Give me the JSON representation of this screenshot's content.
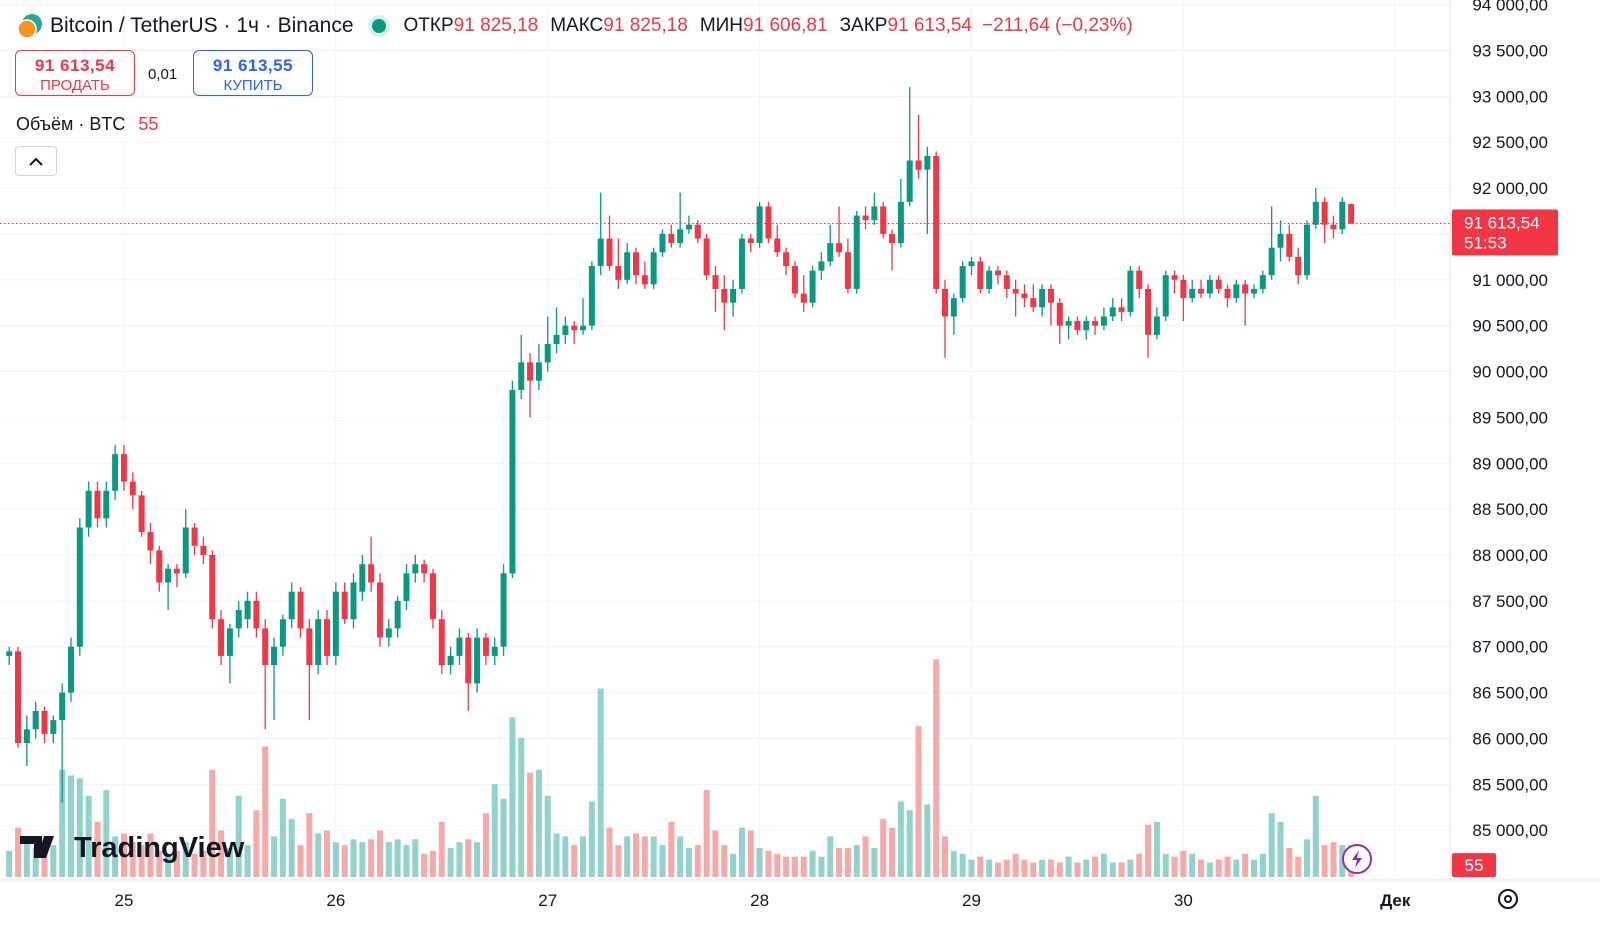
{
  "chart_data": {
    "type": "candlestick",
    "title": "Bitcoin / TetherUS · 1ч · Binance",
    "ohlc_header": [
      {
        "label": "ОТКР",
        "value": "91 825,18"
      },
      {
        "label": "МАКС",
        "value": "91 825,18"
      },
      {
        "label": "МИН",
        "value": "91 606,81"
      },
      {
        "label": "ЗАКР",
        "value": "91 613,54"
      }
    ],
    "change": "−211,64 (−0,23%)",
    "sell": {
      "price": "91 613,54",
      "label": "ПРОДАТЬ"
    },
    "spread": "0,01",
    "buy": {
      "price": "91 613,55",
      "label": "КУПИТЬ"
    },
    "volume_title": "Объём · BTC",
    "price_badge": {
      "price": "91 613,54",
      "timer": "51:53"
    },
    "watermark": "TradingView",
    "up_color": "#089981",
    "down_color": "#f23645",
    "volume_up_color": "#92d2cc",
    "volume_down_color": "#f7a9a7",
    "grid": true,
    "xlim": [
      -14.04,
      150.2
    ],
    "xticks": [
      {
        "value": 0,
        "label": "25"
      },
      {
        "value": 24,
        "label": "26"
      },
      {
        "value": 48,
        "label": "27"
      },
      {
        "value": 72,
        "label": "28"
      },
      {
        "value": 96,
        "label": "29"
      },
      {
        "value": 120,
        "label": "30"
      },
      {
        "value": 144,
        "label": "Дек"
      }
    ],
    "ylim": [
      84490,
      94050
    ],
    "yticks": [
      {
        "value": 85000,
        "label": "85 000,00"
      },
      {
        "value": 85500,
        "label": "85 500,00"
      },
      {
        "value": 86000,
        "label": "86 000,00"
      },
      {
        "value": 86500,
        "label": "86 500,00"
      },
      {
        "value": 87000,
        "label": "87 000,00"
      },
      {
        "value": 87500,
        "label": "87 500,00"
      },
      {
        "value": 88000,
        "label": "88 000,00"
      },
      {
        "value": 88500,
        "label": "88 500,00"
      },
      {
        "value": 89000,
        "label": "89 000,00"
      },
      {
        "value": 89500,
        "label": "89 500,00"
      },
      {
        "value": 90000,
        "label": "90 000,00"
      },
      {
        "value": 90500,
        "label": "90 500,00"
      },
      {
        "value": 91000,
        "label": "91 000,00"
      },
      {
        "value": 91500,
        "label": "91 500,00"
      },
      {
        "value": 92000,
        "label": "92 000,00"
      },
      {
        "value": 92500,
        "label": "92 500,00"
      },
      {
        "value": 93000,
        "label": "93 000,00"
      },
      {
        "value": 93500,
        "label": "93 500,00"
      },
      {
        "value": 94000,
        "label": "94 000,00"
      }
    ],
    "x": [
      -13,
      -12,
      -11,
      -10,
      -9,
      -8,
      -7,
      -6,
      -5,
      -4,
      -3,
      -2,
      -1,
      0,
      1,
      2,
      3,
      4,
      5,
      6,
      7,
      8,
      9,
      10,
      11,
      12,
      13,
      14,
      15,
      16,
      17,
      18,
      19,
      20,
      21,
      22,
      23,
      24,
      25,
      26,
      27,
      28,
      29,
      30,
      31,
      32,
      33,
      34,
      35,
      36,
      37,
      38,
      39,
      40,
      41,
      42,
      43,
      44,
      45,
      46,
      47,
      48,
      49,
      50,
      51,
      52,
      53,
      54,
      55,
      56,
      57,
      58,
      59,
      60,
      61,
      62,
      63,
      64,
      65,
      66,
      67,
      68,
      69,
      70,
      71,
      72,
      73,
      74,
      75,
      76,
      77,
      78,
      79,
      80,
      81,
      82,
      83,
      84,
      85,
      86,
      87,
      88,
      89,
      90,
      91,
      92,
      93,
      94,
      95,
      96,
      97,
      98,
      99,
      100,
      101,
      102,
      103,
      104,
      105,
      106,
      107,
      108,
      109,
      110,
      111,
      112,
      113,
      114,
      115,
      116,
      117,
      118,
      119,
      120,
      121,
      122,
      123,
      124,
      125,
      126,
      127,
      128,
      129,
      130,
      131,
      132,
      133,
      134,
      135,
      136,
      137,
      138,
      139
    ],
    "ohlc": [
      [
        86900,
        87000,
        86800,
        86950
      ],
      [
        86950,
        87000,
        85900,
        85950
      ],
      [
        85950,
        86250,
        85700,
        86100
      ],
      [
        86100,
        86400,
        86000,
        86300
      ],
      [
        86300,
        86350,
        85950,
        86050
      ],
      [
        86050,
        86250,
        85950,
        86200
      ],
      [
        86200,
        86600,
        85300,
        86500
      ],
      [
        86500,
        87100,
        86400,
        87000
      ],
      [
        87000,
        88400,
        86900,
        88300
      ],
      [
        88300,
        88800,
        88200,
        88700
      ],
      [
        88700,
        88800,
        88300,
        88400
      ],
      [
        88400,
        88800,
        88300,
        88700
      ],
      [
        88700,
        89200,
        88600,
        89100
      ],
      [
        89100,
        89200,
        88700,
        88800
      ],
      [
        88800,
        88900,
        88500,
        88650
      ],
      [
        88650,
        88700,
        88200,
        88250
      ],
      [
        88250,
        88350,
        87900,
        88050
      ],
      [
        88050,
        88100,
        87600,
        87700
      ],
      [
        87700,
        87900,
        87400,
        87850
      ],
      [
        87850,
        87900,
        87650,
        87800
      ],
      [
        87800,
        88500,
        87750,
        88300
      ],
      [
        88300,
        88350,
        88000,
        88100
      ],
      [
        88100,
        88200,
        87900,
        88000
      ],
      [
        88000,
        88050,
        87200,
        87300
      ],
      [
        87300,
        87400,
        86800,
        86900
      ],
      [
        86900,
        87250,
        86600,
        87200
      ],
      [
        87200,
        87500,
        87100,
        87400
      ],
      [
        87300,
        87600,
        87200,
        87500
      ],
      [
        87500,
        87600,
        87100,
        87200
      ],
      [
        87200,
        87300,
        86100,
        86800
      ],
      [
        86800,
        87100,
        86200,
        87000
      ],
      [
        87000,
        87350,
        86900,
        87300
      ],
      [
        87300,
        87700,
        87200,
        87600
      ],
      [
        87600,
        87650,
        87100,
        87200
      ],
      [
        87200,
        87300,
        86200,
        86800
      ],
      [
        86800,
        87400,
        86700,
        87300
      ],
      [
        87300,
        87400,
        86800,
        86900
      ],
      [
        86900,
        87700,
        86800,
        87600
      ],
      [
        87600,
        87700,
        87250,
        87300
      ],
      [
        87300,
        87800,
        87200,
        87700
      ],
      [
        87600,
        88000,
        87500,
        87900
      ],
      [
        87900,
        88200,
        87600,
        87700
      ],
      [
        87700,
        87800,
        87000,
        87100
      ],
      [
        87100,
        87300,
        87000,
        87200
      ],
      [
        87200,
        87550,
        87100,
        87500
      ],
      [
        87500,
        87900,
        87400,
        87800
      ],
      [
        87800,
        88000,
        87700,
        87900
      ],
      [
        87900,
        87950,
        87700,
        87800
      ],
      [
        87800,
        87850,
        87200,
        87300
      ],
      [
        87300,
        87400,
        86700,
        86800
      ],
      [
        86800,
        87000,
        86700,
        86900
      ],
      [
        86900,
        87200,
        86800,
        87100
      ],
      [
        87100,
        87150,
        86300,
        86600
      ],
      [
        86600,
        87200,
        86500,
        87100
      ],
      [
        87100,
        87150,
        86800,
        86900
      ],
      [
        86900,
        87100,
        86800,
        87000
      ],
      [
        87000,
        87900,
        86900,
        87800
      ],
      [
        87800,
        89900,
        87750,
        89800
      ],
      [
        89800,
        90400,
        89700,
        90100
      ],
      [
        90100,
        90200,
        89500,
        89900
      ],
      [
        89900,
        90300,
        89800,
        90100
      ],
      [
        90100,
        90600,
        90000,
        90300
      ],
      [
        90300,
        90700,
        90200,
        90400
      ],
      [
        90400,
        90600,
        90300,
        90500
      ],
      [
        90500,
        90550,
        90300,
        90450
      ],
      [
        90450,
        90800,
        90400,
        90500
      ],
      [
        90500,
        91200,
        90450,
        91150
      ],
      [
        91150,
        91950,
        91050,
        91450
      ],
      [
        91450,
        91700,
        91100,
        91150
      ],
      [
        91150,
        91450,
        90900,
        91000
      ],
      [
        91000,
        91400,
        90950,
        91300
      ],
      [
        91300,
        91350,
        90950,
        91050
      ],
      [
        91050,
        91200,
        90900,
        90950
      ],
      [
        90950,
        91350,
        90900,
        91300
      ],
      [
        91300,
        91550,
        91250,
        91500
      ],
      [
        91500,
        91600,
        91350,
        91400
      ],
      [
        91400,
        91950,
        91350,
        91550
      ],
      [
        91550,
        91700,
        91500,
        91600
      ],
      [
        91600,
        91650,
        91400,
        91450
      ],
      [
        91450,
        91500,
        91000,
        91050
      ],
      [
        91050,
        91150,
        90650,
        90900
      ],
      [
        90900,
        91050,
        90450,
        90750
      ],
      [
        90750,
        91000,
        90600,
        90900
      ],
      [
        90900,
        91500,
        90850,
        91450
      ],
      [
        91450,
        91500,
        91300,
        91400
      ],
      [
        91400,
        91850,
        91350,
        91800
      ],
      [
        91800,
        91850,
        91400,
        91450
      ],
      [
        91450,
        91600,
        91250,
        91300
      ],
      [
        91300,
        91350,
        91050,
        91150
      ],
      [
        91150,
        91200,
        90800,
        90850
      ],
      [
        90850,
        91050,
        90650,
        90750
      ],
      [
        90750,
        91150,
        90700,
        91100
      ],
      [
        91100,
        91300,
        91000,
        91200
      ],
      [
        91200,
        91600,
        91150,
        91400
      ],
      [
        91400,
        91800,
        91250,
        91300
      ],
      [
        91300,
        91450,
        90850,
        90900
      ],
      [
        90900,
        91750,
        90850,
        91700
      ],
      [
        91700,
        91800,
        91550,
        91650
      ],
      [
        91650,
        91950,
        91600,
        91800
      ],
      [
        91800,
        91850,
        91450,
        91500
      ],
      [
        91500,
        91550,
        91100,
        91400
      ],
      [
        91400,
        92100,
        91350,
        91850
      ],
      [
        91850,
        93100,
        91800,
        92300
      ],
      [
        92300,
        92800,
        92100,
        92200
      ],
      [
        92200,
        92450,
        91500,
        92350
      ],
      [
        92350,
        92400,
        90850,
        90900
      ],
      [
        90900,
        91000,
        90150,
        90600
      ],
      [
        90600,
        90850,
        90400,
        90800
      ],
      [
        90800,
        91200,
        90750,
        91150
      ],
      [
        91150,
        91250,
        91050,
        91200
      ],
      [
        91200,
        91250,
        90850,
        90900
      ],
      [
        90900,
        91150,
        90850,
        91100
      ],
      [
        91100,
        91150,
        90950,
        91050
      ],
      [
        91050,
        91100,
        90800,
        90900
      ],
      [
        90900,
        91000,
        90600,
        90850
      ],
      [
        90850,
        90950,
        90700,
        90800
      ],
      [
        90800,
        90950,
        90650,
        90700
      ],
      [
        90700,
        90950,
        90600,
        90900
      ],
      [
        90900,
        90950,
        90500,
        90750
      ],
      [
        90750,
        90800,
        90300,
        90500
      ],
      [
        90500,
        90600,
        90350,
        90550
      ],
      [
        90550,
        90600,
        90400,
        90450
      ],
      [
        90450,
        90600,
        90350,
        90550
      ],
      [
        90550,
        90600,
        90400,
        90500
      ],
      [
        90500,
        90700,
        90450,
        90600
      ],
      [
        90600,
        90800,
        90550,
        90700
      ],
      [
        90700,
        90800,
        90550,
        90650
      ],
      [
        90650,
        91150,
        90600,
        91100
      ],
      [
        91100,
        91150,
        90800,
        90900
      ],
      [
        90900,
        90950,
        90150,
        90400
      ],
      [
        90400,
        90700,
        90350,
        90600
      ],
      [
        90600,
        91100,
        90550,
        91050
      ],
      [
        91050,
        91100,
        90850,
        91000
      ],
      [
        91000,
        91050,
        90550,
        90800
      ],
      [
        90800,
        91000,
        90750,
        90900
      ],
      [
        90900,
        91000,
        90800,
        90850
      ],
      [
        90850,
        91050,
        90800,
        91000
      ],
      [
        91000,
        91050,
        90850,
        90900
      ],
      [
        90900,
        90950,
        90700,
        90800
      ],
      [
        90800,
        91000,
        90750,
        90950
      ],
      [
        90950,
        91000,
        90500,
        90850
      ],
      [
        90850,
        90950,
        90800,
        90900
      ],
      [
        90900,
        91100,
        90850,
        91050
      ],
      [
        91050,
        91800,
        91000,
        91350
      ],
      [
        91350,
        91650,
        91200,
        91500
      ],
      [
        91500,
        91600,
        91200,
        91250
      ],
      [
        91250,
        91350,
        90950,
        91050
      ],
      [
        91050,
        91650,
        91000,
        91600
      ],
      [
        91600,
        92000,
        91550,
        91850
      ],
      [
        91850,
        91900,
        91400,
        91600
      ],
      [
        91600,
        91700,
        91450,
        91550
      ],
      [
        91550,
        91900,
        91500,
        91850
      ],
      [
        91825.18,
        91825.18,
        91606.81,
        91613.54
      ]
    ],
    "volume": [
      45,
      85,
      60,
      50,
      65,
      55,
      185,
      175,
      170,
      140,
      95,
      150,
      70,
      75,
      60,
      55,
      75,
      45,
      40,
      45,
      60,
      40,
      45,
      185,
      80,
      50,
      140,
      55,
      115,
      225,
      70,
      135,
      100,
      55,
      110,
      75,
      80,
      60,
      55,
      65,
      60,
      65,
      80,
      60,
      65,
      55,
      65,
      40,
      45,
      95,
      50,
      60,
      65,
      60,
      110,
      160,
      135,
      275,
      240,
      180,
      185,
      140,
      75,
      70,
      55,
      70,
      130,
      325,
      85,
      55,
      70,
      75,
      70,
      70,
      55,
      95,
      70,
      50,
      55,
      150,
      80,
      55,
      40,
      85,
      80,
      50,
      45,
      40,
      35,
      35,
      35,
      45,
      35,
      70,
      50,
      50,
      55,
      70,
      50,
      100,
      85,
      130,
      115,
      260,
      125,
      375,
      70,
      45,
      40,
      30,
      35,
      30,
      25,
      30,
      40,
      30,
      25,
      30,
      30,
      25,
      35,
      25,
      30,
      35,
      40,
      25,
      25,
      30,
      40,
      90,
      95,
      40,
      35,
      45,
      40,
      30,
      25,
      30,
      35,
      30,
      40,
      30,
      40,
      110,
      95,
      50,
      35,
      65,
      140,
      55,
      60,
      55,
      55
    ]
  }
}
